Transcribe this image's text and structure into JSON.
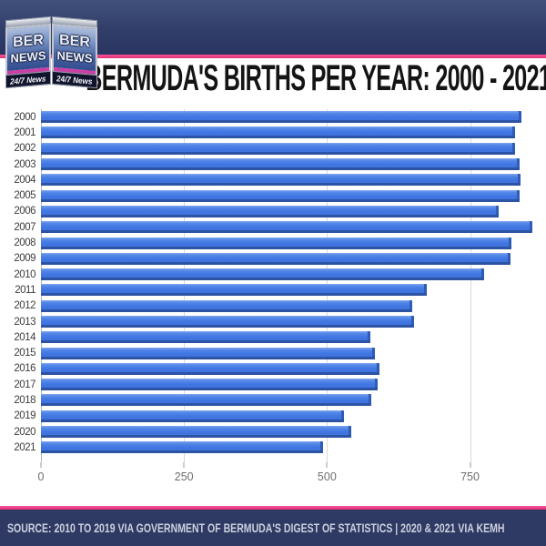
{
  "brand": {
    "name": "Bernews",
    "logo_line1": "BER",
    "logo_line2": "NEWS",
    "logo_tagline": "24/7 News"
  },
  "header": {
    "title": "BERMUDA'S BIRTHS PER YEAR: 2000 - 2021"
  },
  "footer": {
    "source_text": "SOURCE: 2010 TO 2019 VIA GOVERNMENT OF BERMUDA'S DIGEST OF STATISTICS  | 2020 & 2021 VIA KEMH"
  },
  "colors": {
    "header_navy": "#2f3b66",
    "accent_pink": "#e93a7f",
    "bar_blue": "#4176e2",
    "bar_shadow_blue": "#2c53a4",
    "footer_navy": "#2e3a63",
    "gridline_gray": "#d9d9d9",
    "title_black": "#141414"
  },
  "chart_data": {
    "type": "bar",
    "orientation": "horizontal",
    "title": "BERMUDA'S BIRTHS PER YEAR: 2000 - 2021",
    "xlabel": "",
    "ylabel": "",
    "categories": [
      "2000",
      "2001",
      "2002",
      "2003",
      "2004",
      "2005",
      "2006",
      "2007",
      "2008",
      "2009",
      "2010",
      "2011",
      "2012",
      "2013",
      "2014",
      "2015",
      "2016",
      "2017",
      "2018",
      "2019",
      "2020",
      "2021"
    ],
    "values": [
      835,
      825,
      825,
      832,
      833,
      832,
      795,
      855,
      818,
      816,
      770,
      670,
      646,
      649,
      572,
      580,
      589,
      585,
      575,
      527,
      540,
      490
    ],
    "xticks": [
      0,
      250,
      500,
      750
    ],
    "xlim": [
      0,
      878
    ],
    "grid": true,
    "legend": "none",
    "bar_color": "#4176e2"
  }
}
